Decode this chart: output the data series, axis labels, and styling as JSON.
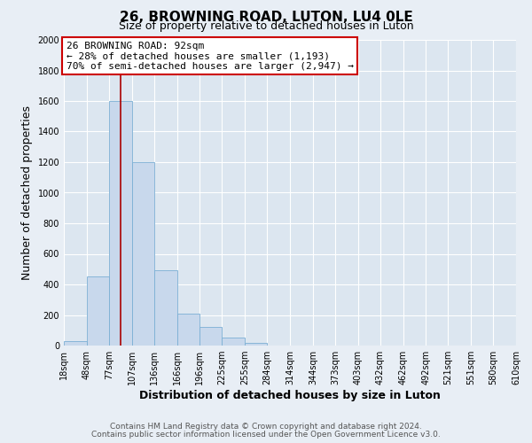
{
  "title": "26, BROWNING ROAD, LUTON, LU4 0LE",
  "subtitle": "Size of property relative to detached houses in Luton",
  "xlabel": "Distribution of detached houses by size in Luton",
  "ylabel": "Number of detached properties",
  "bin_labels": [
    "18sqm",
    "48sqm",
    "77sqm",
    "107sqm",
    "136sqm",
    "166sqm",
    "196sqm",
    "225sqm",
    "255sqm",
    "284sqm",
    "314sqm",
    "344sqm",
    "373sqm",
    "403sqm",
    "432sqm",
    "462sqm",
    "492sqm",
    "521sqm",
    "551sqm",
    "580sqm",
    "610sqm"
  ],
  "bar_heights": [
    30,
    450,
    1600,
    1200,
    490,
    210,
    120,
    50,
    20,
    0,
    0,
    0,
    0,
    0,
    0,
    0,
    0,
    0,
    0,
    0
  ],
  "bar_color": "#c8d8ec",
  "bar_edge_color": "#7bafd4",
  "property_line_x": 92,
  "bin_edges": [
    18,
    48,
    77,
    107,
    136,
    166,
    196,
    225,
    255,
    284,
    314,
    344,
    373,
    403,
    432,
    462,
    492,
    521,
    551,
    580,
    610
  ],
  "annotation_title": "26 BROWNING ROAD: 92sqm",
  "annotation_line1": "← 28% of detached houses are smaller (1,193)",
  "annotation_line2": "70% of semi-detached houses are larger (2,947) →",
  "annotation_box_facecolor": "#ffffff",
  "annotation_box_edgecolor": "#cc0000",
  "vline_color": "#aa0000",
  "ylim": [
    0,
    2000
  ],
  "yticks": [
    0,
    200,
    400,
    600,
    800,
    1000,
    1200,
    1400,
    1600,
    1800,
    2000
  ],
  "footer1": "Contains HM Land Registry data © Crown copyright and database right 2024.",
  "footer2": "Contains public sector information licensed under the Open Government Licence v3.0.",
  "bg_color": "#e8eef5",
  "plot_bg_color": "#dce6f0",
  "grid_color": "#ffffff",
  "title_fontsize": 11,
  "subtitle_fontsize": 9,
  "axis_label_fontsize": 9,
  "tick_fontsize": 7,
  "footer_fontsize": 6.5,
  "annot_fontsize": 8
}
